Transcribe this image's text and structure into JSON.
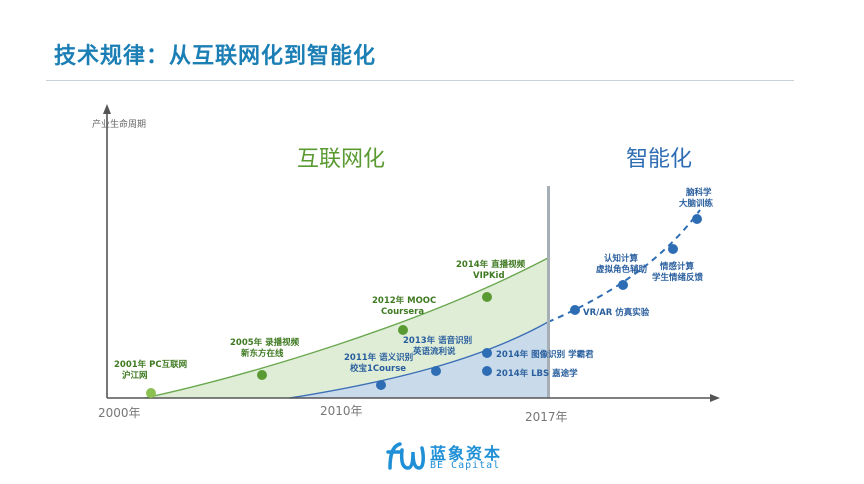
{
  "header": {
    "title": "技术规律：从互联网化到智能化"
  },
  "axes": {
    "y_label": "产业生命周期",
    "x_ticks": [
      "2000年",
      "2010年",
      "2017年"
    ]
  },
  "phases": {
    "internet": "互联网化",
    "intelligent": "智能化"
  },
  "colors": {
    "accent": "#1b7fb5",
    "internet_fill": "#d9ead0",
    "internet_line": "#6aa84f",
    "intelligent_fill": "#c6d8ec",
    "intelligent_line": "#3d6fb6",
    "green_node": "#5a9a32",
    "blue_node": "#2e6db4"
  },
  "milestones": {
    "m2001": [
      "2001年 PC互联网",
      "沪江网"
    ],
    "m2005": [
      "2005年 录播视频",
      "新东方在线"
    ],
    "m2012": [
      "2012年 MOOC",
      "Coursera"
    ],
    "m2014a": [
      "2014年 直播视频",
      "VIPKid"
    ],
    "m2011": [
      "2011年 语义识别",
      "校宝1Course"
    ],
    "m2013": [
      "2013年 语音识别",
      "英语流利说"
    ],
    "m2014b": [
      "2014年 图像识别 学霸君"
    ],
    "m2014c": [
      "2014年 LBS 嘉途学"
    ],
    "mvr": [
      "VR/AR 仿真实验"
    ],
    "mcog": [
      "认知计算",
      "虚拟角色辅助"
    ],
    "memo": [
      "情感计算",
      "学生情绪反馈"
    ],
    "mbrain": [
      "脑科学",
      "大脑训练"
    ]
  },
  "logo": {
    "name": "蓝象资本",
    "sub": "BE Capital"
  }
}
